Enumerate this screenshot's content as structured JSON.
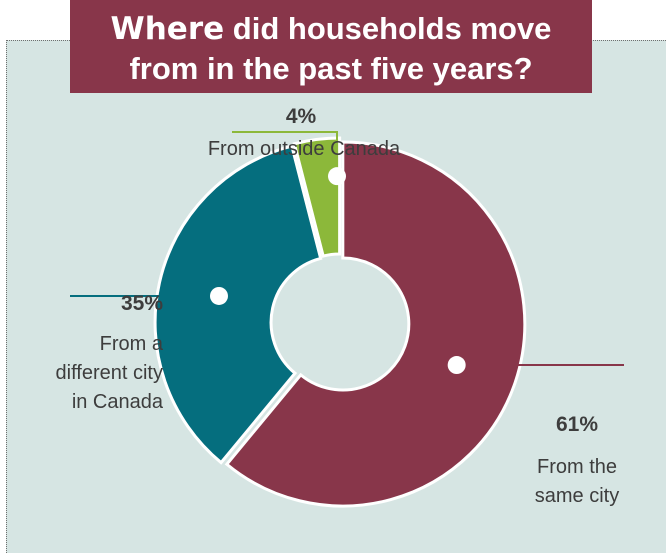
{
  "header": {
    "title_emphasis": "Where",
    "title_line1_rest": "did households move",
    "title_line2": "from in the past five years?"
  },
  "colors": {
    "same_city": "#88364a",
    "different_city": "#056e7e",
    "outside_canada": "#8cb83a",
    "panel_bg": "#d6e5e3"
  },
  "chart_data": {
    "type": "pie",
    "title": "Where did households move from in the past five years?",
    "donut": true,
    "unit": "%",
    "slices": [
      {
        "label": "From the same city",
        "value": 61,
        "value_label": "61%",
        "label_lines": [
          "From the",
          "same city"
        ],
        "color": "#88364a"
      },
      {
        "label": "From a different city in Canada",
        "value": 35,
        "value_label": "35%",
        "label_lines": [
          "From a",
          "different city",
          "in Canada"
        ],
        "color": "#056e7e"
      },
      {
        "label": "From outside Canada",
        "value": 4,
        "value_label": "4%",
        "label_lines": [
          "From outside Canada"
        ],
        "color": "#8cb83a"
      }
    ]
  }
}
